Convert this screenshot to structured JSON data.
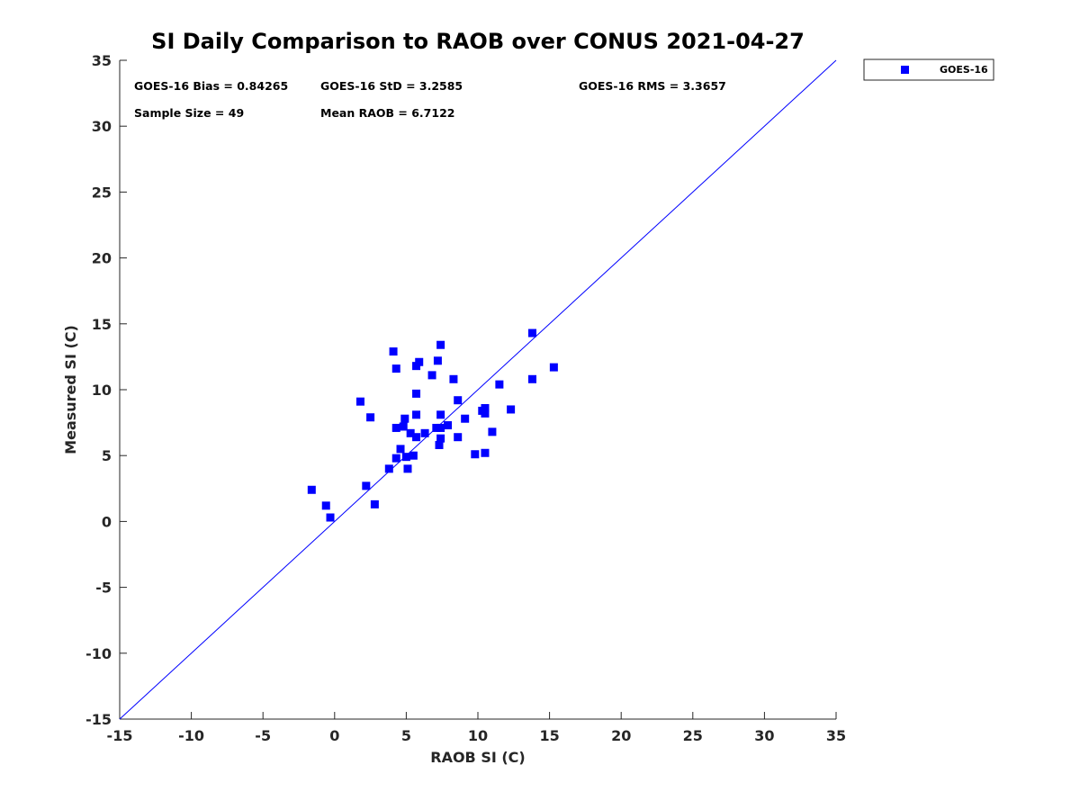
{
  "chart_data": {
    "type": "scatter",
    "title": "SI Daily Comparison to RAOB over CONUS 2021-04-27",
    "xlabel": "RAOB SI (C)",
    "ylabel": "Measured SI (C)",
    "xlim": [
      -15,
      35
    ],
    "ylim": [
      -15,
      35
    ],
    "x_ticks": [
      -15,
      -10,
      -5,
      0,
      5,
      10,
      15,
      20,
      25,
      30,
      35
    ],
    "y_ticks": [
      -15,
      -10,
      -5,
      0,
      5,
      10,
      15,
      20,
      25,
      30,
      35
    ],
    "grid": false,
    "legend_position": "top-right-outside",
    "marker_color": "#0000ff",
    "line_color": "#0000ff",
    "reference_line": {
      "from": [
        -15,
        -15
      ],
      "to": [
        35,
        35
      ]
    },
    "annotations": {
      "bias": "GOES-16 Bias = 0.84265",
      "std": "GOES-16 StD = 3.2585",
      "rms": "GOES-16 RMS = 3.3657",
      "sample_size": "Sample Size = 49",
      "mean_raob": "Mean RAOB = 6.7122"
    },
    "series": [
      {
        "name": "GOES-16",
        "points": [
          [
            -1.6,
            2.4
          ],
          [
            -0.6,
            1.2
          ],
          [
            -0.3,
            0.3
          ],
          [
            1.8,
            9.1
          ],
          [
            2.2,
            2.7
          ],
          [
            2.5,
            7.9
          ],
          [
            2.8,
            1.3
          ],
          [
            3.8,
            4.0
          ],
          [
            4.1,
            12.9
          ],
          [
            4.3,
            11.6
          ],
          [
            4.3,
            7.1
          ],
          [
            4.3,
            4.8
          ],
          [
            4.6,
            5.5
          ],
          [
            4.8,
            7.2
          ],
          [
            4.9,
            7.8
          ],
          [
            5.0,
            4.9
          ],
          [
            5.1,
            4.0
          ],
          [
            5.3,
            6.7
          ],
          [
            5.5,
            5.0
          ],
          [
            5.7,
            11.8
          ],
          [
            5.7,
            9.7
          ],
          [
            5.7,
            8.1
          ],
          [
            5.7,
            6.4
          ],
          [
            5.9,
            12.1
          ],
          [
            6.3,
            6.7
          ],
          [
            6.8,
            11.1
          ],
          [
            7.1,
            7.1
          ],
          [
            7.2,
            12.2
          ],
          [
            7.3,
            5.8
          ],
          [
            7.4,
            13.4
          ],
          [
            7.4,
            8.1
          ],
          [
            7.4,
            6.3
          ],
          [
            7.4,
            7.1
          ],
          [
            7.9,
            7.3
          ],
          [
            8.3,
            10.8
          ],
          [
            8.6,
            9.2
          ],
          [
            8.6,
            6.4
          ],
          [
            9.1,
            7.8
          ],
          [
            9.8,
            5.1
          ],
          [
            10.3,
            8.4
          ],
          [
            10.5,
            8.6
          ],
          [
            10.5,
            8.2
          ],
          [
            10.5,
            5.2
          ],
          [
            11.0,
            6.8
          ],
          [
            11.5,
            10.4
          ],
          [
            12.3,
            8.5
          ],
          [
            13.8,
            14.3
          ],
          [
            13.8,
            10.8
          ],
          [
            15.3,
            11.7
          ]
        ]
      }
    ]
  }
}
